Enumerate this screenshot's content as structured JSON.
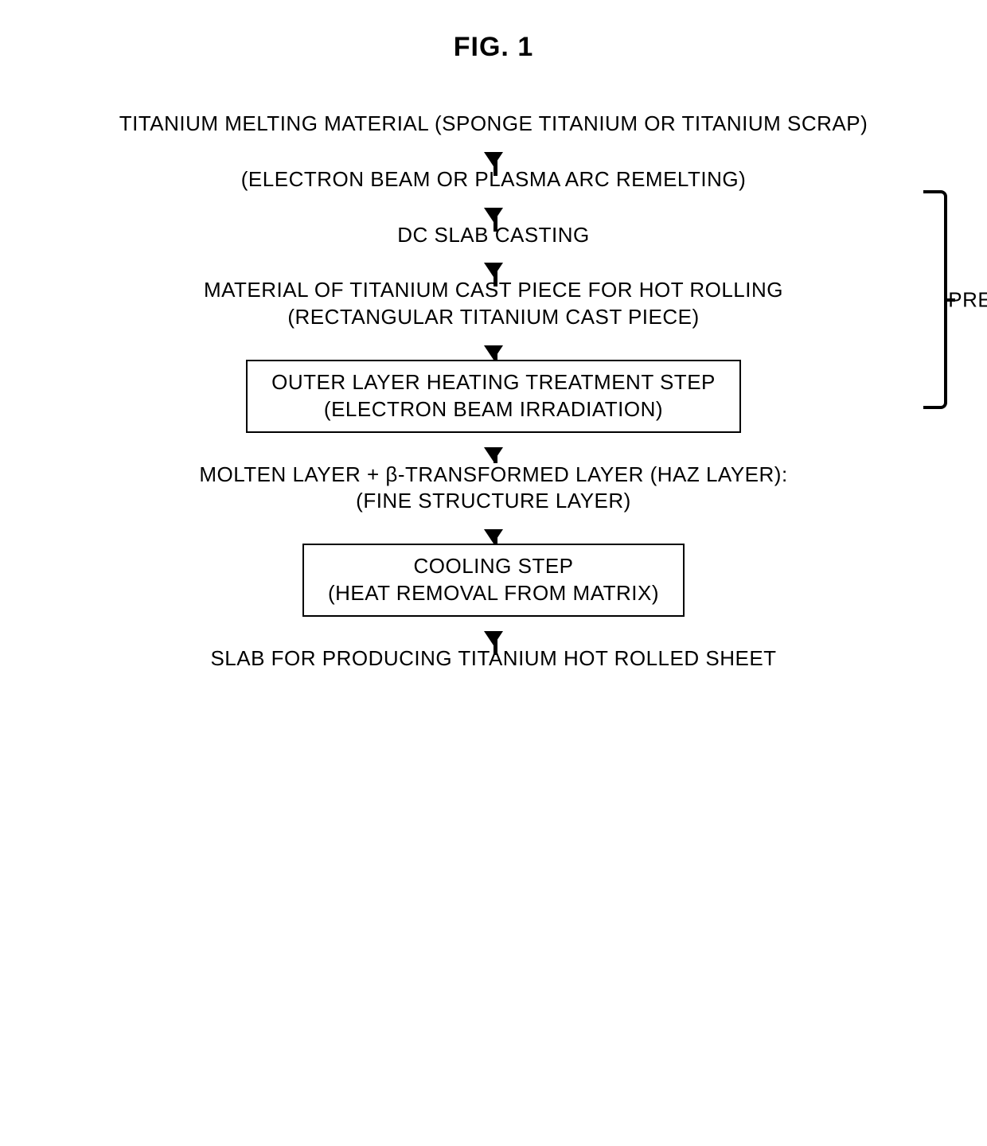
{
  "figure": {
    "title": "FIG. 1"
  },
  "flowchart": {
    "type": "flowchart",
    "background_color": "#ffffff",
    "text_color": "#000000",
    "box_border_color": "#000000",
    "box_border_width": 2,
    "arrow_color": "#000000",
    "font_family": "Arial",
    "step_fontsize": 26,
    "title_fontsize": 34,
    "steps": [
      {
        "id": "step1",
        "text": "TITANIUM MELTING MATERIAL (SPONGE TITANIUM OR TITANIUM SCRAP)",
        "boxed": false
      },
      {
        "id": "step2",
        "text": "(ELECTRON BEAM OR PLASMA ARC  REMELTING)",
        "boxed": false
      },
      {
        "id": "step3",
        "text": "DC SLAB CASTING",
        "boxed": false
      },
      {
        "id": "step4",
        "line1": "MATERIAL OF TITANIUM CAST PIECE FOR HOT ROLLING",
        "line2": "(RECTANGULAR TITANIUM CAST PIECE)",
        "boxed": false
      },
      {
        "id": "step5",
        "line1": "OUTER LAYER HEATING TREATMENT STEP",
        "line2": "(ELECTRON BEAM IRRADIATION)",
        "boxed": true
      },
      {
        "id": "step6",
        "line1": "MOLTEN LAYER + β-TRANSFORMED LAYER (HAZ LAYER):",
        "line2": "(FINE  STRUCTURE  LAYER)",
        "boxed": false
      },
      {
        "id": "step7",
        "line1": "COOLING STEP",
        "line2": "(HEAT REMOVAL FROM MATRIX)",
        "boxed": true
      },
      {
        "id": "step8",
        "text": "SLAB FOR PRODUCING TITANIUM HOT ROLLED SHEET",
        "boxed": false
      }
    ],
    "bracket": {
      "label": "PRE-PROCESS",
      "spans_steps": [
        "step2",
        "step3"
      ],
      "position": "right"
    }
  }
}
